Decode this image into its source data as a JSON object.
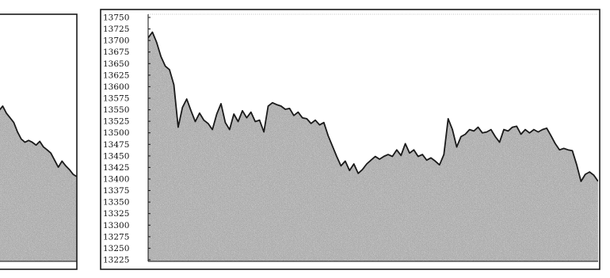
{
  "colors": {
    "area_fill": "#9a9a9a",
    "line": "#1a1a1a",
    "background": "#ffffff"
  },
  "chart_data": [
    {
      "type": "area",
      "title": "",
      "xlabel": "",
      "ylabel": "",
      "ylim": [
        13225,
        13750
      ],
      "y_ticks": [],
      "grid": "top-edge-dotted",
      "note": "left panel, cropped at the image edge",
      "series": [
        {
          "values": [
            13560,
            13545,
            13555,
            13540,
            13530,
            13520,
            13500,
            13485,
            13478,
            13482,
            13478,
            13472,
            13480,
            13468,
            13462,
            13455,
            13440,
            13425,
            13438,
            13428,
            13420,
            13410,
            13405
          ]
        }
      ]
    },
    {
      "type": "area",
      "title": "",
      "xlabel": "",
      "ylabel": "",
      "ylim": [
        13225,
        13750
      ],
      "y_ticks": [
        "13750",
        "13725",
        "13700",
        "13675",
        "13650",
        "13625",
        "13600",
        "13575",
        "13550",
        "13525",
        "13500",
        "13475",
        "13450",
        "13425",
        "13400",
        "13375",
        "13350",
        "13325",
        "13300",
        "13275",
        "13250",
        "13225"
      ],
      "grid": "top-edge-dotted",
      "series": [
        {
          "values": [
            13700,
            13712,
            13690,
            13660,
            13640,
            13632,
            13600,
            13510,
            13552,
            13570,
            13545,
            13522,
            13540,
            13525,
            13518,
            13505,
            13538,
            13560,
            13520,
            13505,
            13538,
            13522,
            13545,
            13530,
            13542,
            13522,
            13525,
            13500,
            13555,
            13562,
            13558,
            13555,
            13548,
            13550,
            13535,
            13542,
            13530,
            13528,
            13518,
            13525,
            13515,
            13520,
            13492,
            13470,
            13448,
            13428,
            13438,
            13418,
            13432,
            13412,
            13420,
            13432,
            13440,
            13448,
            13442,
            13448,
            13452,
            13448,
            13462,
            13450,
            13475,
            13455,
            13462,
            13448,
            13452,
            13440,
            13445,
            13438,
            13430,
            13452,
            13528,
            13505,
            13468,
            13490,
            13495,
            13505,
            13502,
            13510,
            13498,
            13500,
            13505,
            13490,
            13478,
            13505,
            13502,
            13510,
            13512,
            13495,
            13505,
            13498,
            13505,
            13500,
            13505,
            13508,
            13492,
            13475,
            13462,
            13465,
            13462,
            13460,
            13430,
            13395,
            13410,
            13415,
            13408,
            13395
          ]
        }
      ]
    }
  ]
}
